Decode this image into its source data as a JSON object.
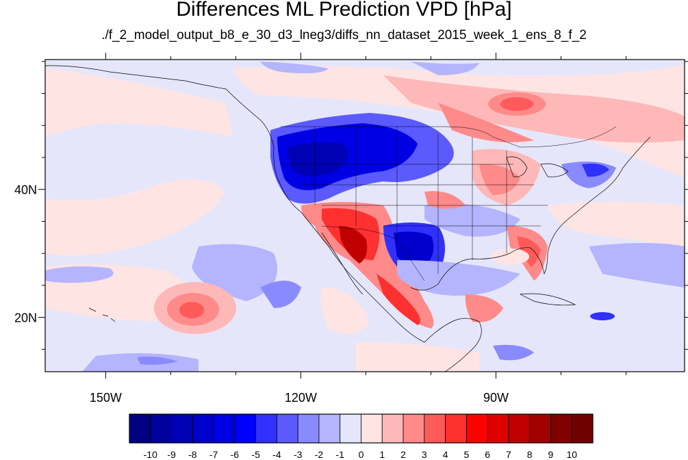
{
  "title": "Differences ML Prediction VPD [hPa]",
  "subtitle": "./f_2_model_output_b8_e_30_d3_lneg3/diffs_nn_dataset_2015_week_1_ens_8_f_2",
  "map": {
    "lon_range": [
      -159.3,
      -61
    ],
    "lat_range": [
      11.5,
      60.3
    ],
    "lon_ticks": [
      {
        "value": -150,
        "label": "150W"
      },
      {
        "value": -120,
        "label": "120W"
      },
      {
        "value": -90,
        "label": "90W"
      }
    ],
    "lat_ticks": [
      {
        "value": 40,
        "label": "40N"
      },
      {
        "value": 20,
        "label": "20N"
      }
    ],
    "minor_lon_step": 10,
    "minor_lat_step": 5
  },
  "colorbar": {
    "levels": [
      "-10",
      "-9",
      "-8",
      "-7",
      "-6",
      "-5",
      "-4",
      "-3",
      "-2",
      "-1",
      "0",
      "1",
      "2",
      "3",
      "4",
      "5",
      "6",
      "7",
      "8",
      "9",
      "10"
    ],
    "colors": [
      "#000080",
      "#00009c",
      "#0000b4",
      "#0000cc",
      "#0000e4",
      "#0000ff",
      "#3030ff",
      "#5a5aff",
      "#8a8aff",
      "#b4b4ff",
      "#e6e6fa",
      "#ffe4e4",
      "#ffb8b8",
      "#ff8a8a",
      "#ff5a5a",
      "#ff3030",
      "#ff0000",
      "#e00000",
      "#c00000",
      "#a00000",
      "#800000",
      "#700000"
    ]
  },
  "palette": {
    "background": "#ffffff",
    "ocean_base": "#e6e6fa",
    "light_pink": "#ffe4e4",
    "border": "#000000"
  }
}
